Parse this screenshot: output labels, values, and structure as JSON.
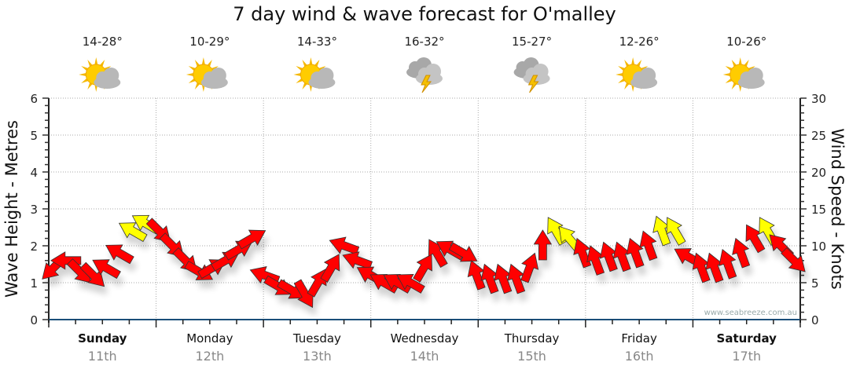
{
  "chart_data": {
    "type": "scatter",
    "title": "7 day wind & wave forecast for O'malley",
    "ylabel_left": "Wave Height - Metres",
    "ylabel_right": "Wind Speed - Knots",
    "ylim_left": [
      0,
      6
    ],
    "ylim_right": [
      0,
      30
    ],
    "yticks_left": [
      "0",
      "1",
      "2",
      "3",
      "4",
      "5",
      "6"
    ],
    "yticks_right": [
      "0",
      "5",
      "10",
      "15",
      "20",
      "25",
      "30"
    ],
    "grid": true,
    "watermark": "www.seabreeze.com.au",
    "days": [
      {
        "name": "Sunday",
        "date": "11th",
        "bold": true,
        "temp": "14-28°",
        "icon": "partly-sunny-icon"
      },
      {
        "name": "Monday",
        "date": "12th",
        "bold": false,
        "temp": "10-29°",
        "icon": "partly-sunny-icon"
      },
      {
        "name": "Tuesday",
        "date": "13th",
        "bold": false,
        "temp": "14-33°",
        "icon": "partly-sunny-icon"
      },
      {
        "name": "Wednesday",
        "date": "14th",
        "bold": false,
        "temp": "16-32°",
        "icon": "thunderstorm-icon"
      },
      {
        "name": "Thursday",
        "date": "15th",
        "bold": false,
        "temp": "15-27°",
        "icon": "thunderstorm-icon"
      },
      {
        "name": "Friday",
        "date": "16th",
        "bold": false,
        "temp": "12-26°",
        "icon": "partly-sunny-icon"
      },
      {
        "name": "Saturday",
        "date": "17th",
        "bold": true,
        "temp": "10-26°",
        "icon": "partly-sunny-icon"
      }
    ],
    "wind_series_note_units": "knots, arrow bearing in degrees",
    "wind": [
      [
        7,
        225,
        "r"
      ],
      [
        8,
        270,
        "r"
      ],
      [
        6.5,
        135,
        "r"
      ],
      [
        6,
        135,
        "r"
      ],
      [
        7,
        300,
        "r"
      ],
      [
        9,
        300,
        "r"
      ],
      [
        12,
        300,
        "y"
      ],
      [
        13,
        300,
        "y"
      ],
      [
        12,
        135,
        "r"
      ],
      [
        10,
        135,
        "r"
      ],
      [
        8,
        135,
        "r"
      ],
      [
        6.5,
        120,
        "r"
      ],
      [
        7,
        60,
        "r"
      ],
      [
        8,
        60,
        "r"
      ],
      [
        9.5,
        60,
        "r"
      ],
      [
        11,
        60,
        "r"
      ],
      [
        6,
        290,
        "r"
      ],
      [
        4.5,
        120,
        "r"
      ],
      [
        4,
        120,
        "r"
      ],
      [
        3.5,
        150,
        "r"
      ],
      [
        5,
        30,
        "r"
      ],
      [
        7,
        30,
        "r"
      ],
      [
        10,
        290,
        "r"
      ],
      [
        8,
        290,
        "r"
      ],
      [
        6,
        300,
        "r"
      ],
      [
        5,
        300,
        "r"
      ],
      [
        5,
        300,
        "r"
      ],
      [
        5,
        300,
        "r"
      ],
      [
        7,
        30,
        "r"
      ],
      [
        9,
        330,
        "r"
      ],
      [
        9.5,
        300,
        "r"
      ],
      [
        9,
        120,
        "r"
      ],
      [
        6,
        340,
        "r"
      ],
      [
        5.5,
        340,
        "r"
      ],
      [
        5.5,
        340,
        "r"
      ],
      [
        5.5,
        340,
        "r"
      ],
      [
        7,
        20,
        "r"
      ],
      [
        10,
        0,
        "r"
      ],
      [
        12,
        330,
        "y"
      ],
      [
        11,
        320,
        "y"
      ],
      [
        9,
        340,
        "r"
      ],
      [
        8,
        340,
        "r"
      ],
      [
        8.5,
        340,
        "r"
      ],
      [
        8.5,
        340,
        "r"
      ],
      [
        9,
        340,
        "r"
      ],
      [
        10,
        340,
        "r"
      ],
      [
        12,
        340,
        "y"
      ],
      [
        12,
        330,
        "y"
      ],
      [
        8.5,
        300,
        "r"
      ],
      [
        7,
        340,
        "r"
      ],
      [
        7,
        340,
        "r"
      ],
      [
        7.5,
        340,
        "r"
      ],
      [
        9,
        340,
        "r"
      ],
      [
        11,
        330,
        "r"
      ],
      [
        12,
        330,
        "y"
      ],
      [
        10,
        315,
        "r"
      ],
      [
        8,
        135,
        "r"
      ]
    ],
    "colors": {
      "r": "#ff0000",
      "y": "#ffff00"
    }
  }
}
